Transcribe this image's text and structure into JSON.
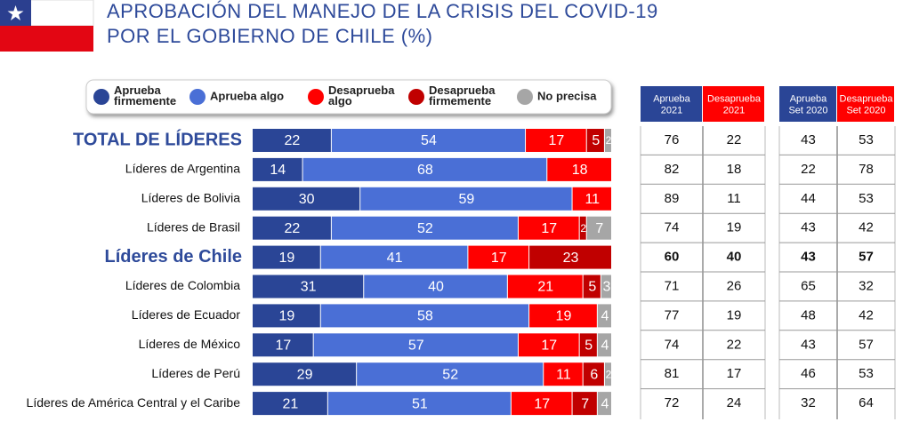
{
  "chart_data": {
    "type": "stacked-bar",
    "title": [
      "APROBACIÓN DEL MANEJO DE LA CRISIS DEL COVID-19",
      "POR EL GOBIERNO DE CHILE (%)"
    ],
    "categories": [
      "TOTAL DE LÍDERES",
      "Líderes de Argentina",
      "Líderes de Bolivia",
      "Líderes de Brasil",
      "Líderes de Chile",
      "Líderes de Colombia",
      "Líderes de Ecuador",
      "Líderes de México",
      "Líderes de Perú",
      "Líderes de América Central y el Caribe"
    ],
    "highlight": [
      true,
      false,
      false,
      false,
      true,
      false,
      false,
      false,
      false,
      false
    ],
    "xlim": [
      0,
      100
    ],
    "series": [
      {
        "name": "Aprueba firmemente",
        "color": "#2a4596",
        "values": [
          22,
          14,
          30,
          22,
          19,
          31,
          19,
          17,
          29,
          21
        ]
      },
      {
        "name": "Aprueba algo",
        "color": "#4a6fd6",
        "values": [
          54,
          68,
          59,
          52,
          41,
          40,
          58,
          57,
          52,
          51
        ]
      },
      {
        "name": "Desaprueba algo",
        "color": "#ff0000",
        "values": [
          17,
          18,
          11,
          17,
          17,
          21,
          19,
          17,
          11,
          17
        ]
      },
      {
        "name": "Desaprueba firmemente",
        "color": "#c00000",
        "values": [
          5,
          null,
          null,
          2,
          23,
          5,
          null,
          5,
          6,
          7
        ]
      },
      {
        "name": "No precisa",
        "color": "#a6a6a6",
        "values": [
          2,
          null,
          null,
          7,
          null,
          3,
          4,
          4,
          2,
          4
        ]
      }
    ]
  },
  "tables": [
    {
      "columns": [
        "Aprueba 2021",
        "Desaprueba 2021"
      ],
      "header_colors": [
        "#2a4596",
        "#ff0000"
      ],
      "rows": [
        [
          76,
          22
        ],
        [
          82,
          18
        ],
        [
          89,
          11
        ],
        [
          74,
          19
        ],
        [
          60,
          40
        ],
        [
          71,
          26
        ],
        [
          77,
          19
        ],
        [
          74,
          22
        ],
        [
          81,
          17
        ],
        [
          72,
          24
        ]
      ]
    },
    {
      "columns": [
        "Aprueba Set 2020",
        "Desaprueba Set 2020"
      ],
      "header_colors": [
        "#2a4596",
        "#ff0000"
      ],
      "rows": [
        [
          43,
          53
        ],
        [
          22,
          78
        ],
        [
          44,
          53
        ],
        [
          43,
          42
        ],
        [
          43,
          57
        ],
        [
          65,
          32
        ],
        [
          48,
          42
        ],
        [
          43,
          57
        ],
        [
          46,
          53
        ],
        [
          32,
          64
        ]
      ]
    }
  ]
}
